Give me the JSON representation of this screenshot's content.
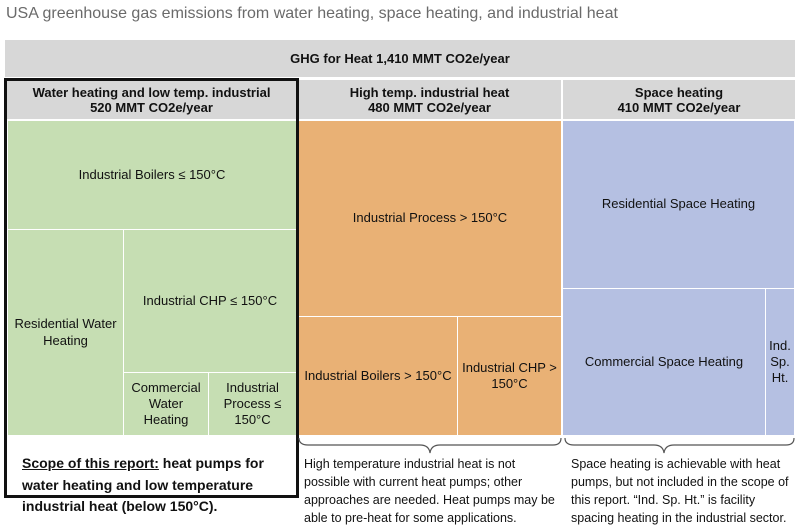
{
  "title": "USA greenhouse gas emissions from water heating, space heating, and industrial heat",
  "total": "GHG for Heat 1,410 MMT CO2e/year",
  "categories": [
    {
      "name": "Water heating and low temp. industrial",
      "value": "520 MMT CO2e/year"
    },
    {
      "name": "High temp. industrial heat",
      "value": "480 MMT CO2e/year"
    },
    {
      "name": "Space heating",
      "value": "410 MMT CO2e/year"
    }
  ],
  "cells": {
    "ind_boilers_low": "Industrial Boilers ≤ 150°C",
    "res_water": "Residential Water Heating",
    "ind_chp_low": "Industrial CHP ≤ 150°C",
    "com_water": "Commercial Water Heating",
    "ind_process_low": "Industrial Process ≤ 150°C",
    "ind_process_high": "Industrial Process > 150°C",
    "ind_boilers_high": "Industrial Boilers > 150°C",
    "ind_chp_high": "Industrial CHP > 150°C",
    "res_space": "Residential Space Heating",
    "com_space": "Commercial Space Heating",
    "ind_sp_ht": "Ind. Sp. Ht."
  },
  "notes": {
    "scope_label": "Scope of this report:",
    "scope_text": " heat pumps for water heating and low temperature industrial heat (below 150°C).",
    "high_temp": "High temperature industrial heat is not possible with current heat pumps; other approaches are needed. Heat pumps may be able to pre-heat for some applications.",
    "space": "Space heating is achievable with heat pumps, but not included in the scope of this report. “Ind. Sp. Ht.” is facility spacing heating in the industrial sector."
  },
  "colors": {
    "green": "#c6deb3",
    "orange": "#e9b175",
    "blue": "#b5c0e2",
    "grey": "#d7d7d7"
  }
}
